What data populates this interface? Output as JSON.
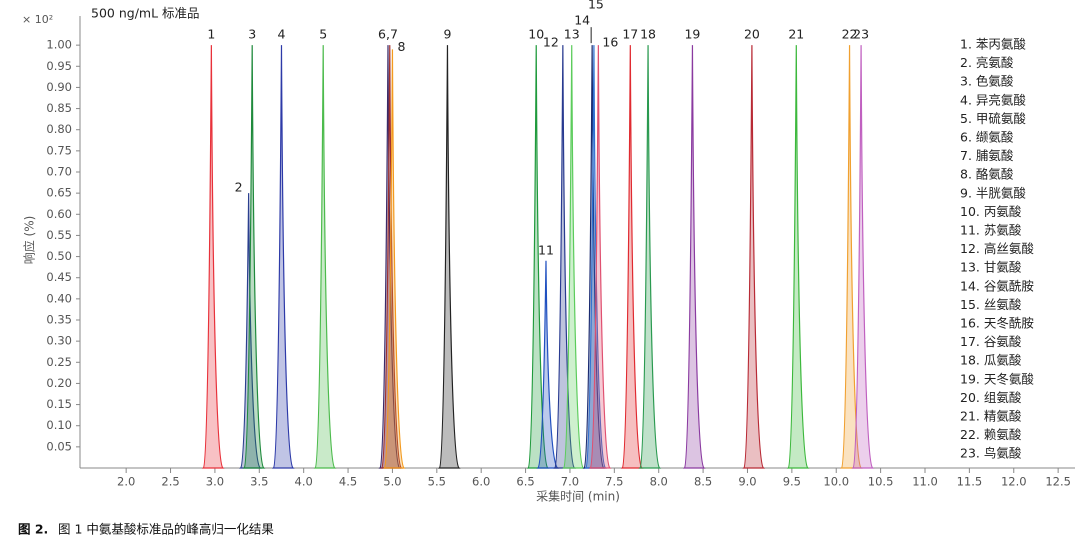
{
  "chart_data": {
    "type": "chromatogram",
    "title": "500 ng/mL 标准品",
    "y_multiplier": "× 10²",
    "x_label": "采集时间 (min)",
    "y_label": "响应 (%)",
    "caption_label": "图 2.",
    "caption_text": "图 1 中氨基酸标准品的峰高归一化结果",
    "xlim": [
      1.48,
      12.69
    ],
    "ylim": [
      0,
      1.05
    ],
    "xticks": [
      {
        "value": 2,
        "label": "2.0"
      },
      {
        "value": 2.5,
        "label": "2.5"
      },
      {
        "value": 3,
        "label": "3.0"
      },
      {
        "value": 3.5,
        "label": "3.5"
      },
      {
        "value": 4,
        "label": "4.0"
      },
      {
        "value": 4.5,
        "label": "4.5"
      },
      {
        "value": 5,
        "label": "5.0"
      },
      {
        "value": 5.5,
        "label": "5.5"
      },
      {
        "value": 6,
        "label": "6.0"
      },
      {
        "value": 6.5,
        "label": "6.5"
      },
      {
        "value": 7,
        "label": "7.0"
      },
      {
        "value": 7.5,
        "label": "7.5"
      },
      {
        "value": 8,
        "label": "8.0"
      },
      {
        "value": 8.5,
        "label": "8.5"
      },
      {
        "value": 9,
        "label": "9.0"
      },
      {
        "value": 9.5,
        "label": "9.5"
      },
      {
        "value": 10,
        "label": "10.0"
      },
      {
        "value": 10.5,
        "label": "10.5"
      },
      {
        "value": 11,
        "label": "11.0"
      },
      {
        "value": 11.5,
        "label": "11.5"
      },
      {
        "value": 12,
        "label": "12.0"
      },
      {
        "value": 12.5,
        "label": "12.5"
      }
    ],
    "yticks": [
      {
        "value": 0.05,
        "label": "0.05"
      },
      {
        "value": 0.1,
        "label": "0.10"
      },
      {
        "value": 0.15,
        "label": "0.15"
      },
      {
        "value": 0.2,
        "label": "0.20"
      },
      {
        "value": 0.25,
        "label": "0.25"
      },
      {
        "value": 0.3,
        "label": "0.30"
      },
      {
        "value": 0.35,
        "label": "0.35"
      },
      {
        "value": 0.4,
        "label": "0.40"
      },
      {
        "value": 0.45,
        "label": "0.45"
      },
      {
        "value": 0.5,
        "label": "0.50"
      },
      {
        "value": 0.55,
        "label": "0.55"
      },
      {
        "value": 0.6,
        "label": "0.60"
      },
      {
        "value": 0.65,
        "label": "0.65"
      },
      {
        "value": 0.7,
        "label": "0.70"
      },
      {
        "value": 0.75,
        "label": "0.75"
      },
      {
        "value": 0.8,
        "label": "0.80"
      },
      {
        "value": 0.85,
        "label": "0.85"
      },
      {
        "value": 0.9,
        "label": "0.90"
      },
      {
        "value": 0.95,
        "label": "0.95"
      },
      {
        "value": 1.0,
        "label": "1.00"
      }
    ],
    "series": [
      {
        "name": "1.  苯丙氨酸",
        "label": "1",
        "color": "#e8313a",
        "x": 2.96,
        "value": 1.0
      },
      {
        "name": "2.  亮氨酸",
        "label": "2",
        "color": "#2b3f8f",
        "x": 3.38,
        "value": 0.65
      },
      {
        "name": "3.  色氨酸",
        "label": "3",
        "color": "#1f8a3c",
        "x": 3.42,
        "value": 1.0
      },
      {
        "name": "4.  异亮氨酸",
        "label": "4",
        "color": "#2d3aa8",
        "x": 3.75,
        "value": 1.0
      },
      {
        "name": "5.  甲硫氨酸",
        "label": "5",
        "color": "#4cbb4c",
        "x": 4.22,
        "value": 1.0
      },
      {
        "name": "6.  缬氨酸",
        "label": "6,7",
        "color": "#3a2a6a",
        "x": 4.95,
        "value": 1.0
      },
      {
        "name": "7.  脯氨酸",
        "color": "#a03030",
        "x": 4.97,
        "value": 1.0
      },
      {
        "name": "8.  酪氨酸",
        "label": "8",
        "color": "#f39a1e",
        "x": 5.0,
        "value": 0.99
      },
      {
        "name": "9.  半胱氨酸",
        "label": "9",
        "color": "#222222",
        "x": 5.62,
        "value": 1.0
      },
      {
        "name": "10. 丙氨酸",
        "label": "10",
        "color": "#1f9a3c",
        "x": 6.62,
        "value": 1.0
      },
      {
        "name": "11. 苏氨酸",
        "label": "11",
        "color": "#2050c0",
        "x": 6.73,
        "value": 0.49
      },
      {
        "name": "12. 高丝氨酸",
        "label": "12",
        "color": "#283a90",
        "x": 6.92,
        "value": 1.0
      },
      {
        "name": "13. 甘氨酸",
        "label": "13",
        "color": "#5ccc5c",
        "x": 7.02,
        "value": 1.0
      },
      {
        "name": "14. 谷氨酰胺",
        "label": "14",
        "color": "#1a2a70",
        "x": 7.25,
        "value": 1.0
      },
      {
        "name": "15. 丝氨酸",
        "label": "15",
        "color": "#3070d0",
        "x": 7.27,
        "value": 1.0
      },
      {
        "name": "16. 天冬酰胺",
        "label": "16",
        "color": "#e05070",
        "x": 7.32,
        "value": 1.0
      },
      {
        "name": "17. 谷氨酸",
        "label": "17",
        "color": "#e02a30",
        "x": 7.68,
        "value": 1.0
      },
      {
        "name": "18. 瓜氨酸",
        "label": "18",
        "color": "#2a9a50",
        "x": 7.88,
        "value": 1.0
      },
      {
        "name": "19. 天冬氨酸",
        "label": "19",
        "color": "#8a3aa0",
        "x": 8.38,
        "value": 1.0
      },
      {
        "name": "20. 组氨酸",
        "label": "20",
        "color": "#b82a35",
        "x": 9.05,
        "value": 1.0
      },
      {
        "name": "21. 精氨酸",
        "label": "21",
        "color": "#3cb83c",
        "x": 9.55,
        "value": 1.0
      },
      {
        "name": "22. 赖氨酸",
        "label": "22",
        "color": "#f0a030",
        "x": 10.15,
        "value": 1.0
      },
      {
        "name": "23. 鸟氨酸",
        "label": "23",
        "color": "#c060c0",
        "x": 10.28,
        "value": 1.0
      }
    ]
  }
}
